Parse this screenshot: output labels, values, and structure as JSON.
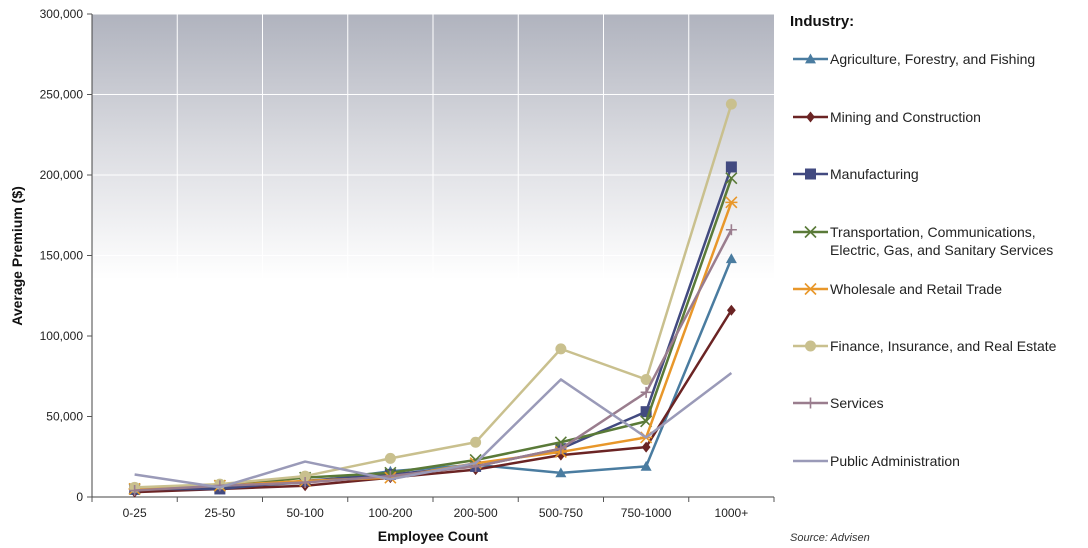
{
  "chart_data": {
    "type": "line",
    "xlabel": "Employee Count",
    "ylabel": "Average Premium ($)",
    "categories": [
      "0-25",
      "25-50",
      "50-100",
      "100-200",
      "200-500",
      "500-750",
      "750-1000",
      "1000+"
    ],
    "ylim": [
      0,
      300000
    ],
    "yticks": [
      0,
      50000,
      100000,
      150000,
      200000,
      250000,
      300000
    ],
    "ytick_labels": [
      "0",
      "50,000",
      "100,000",
      "150,000",
      "200,000",
      "250,000",
      "300,000"
    ],
    "grid": true,
    "legend_title": "Industry:",
    "legend_position": "right",
    "source": "Source: Advisen",
    "series": [
      {
        "name": "Agriculture, Forestry, and Fishing",
        "color": "#4a7ca0",
        "marker": "triangle",
        "values": [
          4000,
          6000,
          9000,
          16000,
          20000,
          15000,
          19000,
          148000
        ]
      },
      {
        "name": "Mining and Construction",
        "color": "#6b2424",
        "marker": "diamond",
        "values": [
          3000,
          5000,
          7000,
          12000,
          17000,
          26000,
          31000,
          116000
        ]
      },
      {
        "name": "Manufacturing",
        "color": "#424a80",
        "marker": "square",
        "values": [
          5000,
          5000,
          10000,
          14000,
          19000,
          30000,
          53000,
          205000
        ]
      },
      {
        "name": "Transportation, Communications, Electric, Gas, and Sanitary Services",
        "color": "#5a7a38",
        "marker": "x",
        "values": [
          5000,
          7000,
          12000,
          15000,
          23000,
          34000,
          47000,
          198000
        ]
      },
      {
        "name": "Wholesale and Retail Trade",
        "color": "#e8972a",
        "marker": "star",
        "values": [
          5000,
          7000,
          10000,
          12000,
          21000,
          28000,
          37000,
          183000
        ]
      },
      {
        "name": "Finance, Insurance, and Real Estate",
        "color": "#c9c08e",
        "marker": "circle",
        "values": [
          6000,
          8000,
          13000,
          24000,
          34000,
          92000,
          73000,
          244000
        ]
      },
      {
        "name": "Services",
        "color": "#9a7d8e",
        "marker": "plus",
        "values": [
          4000,
          7000,
          9000,
          13000,
          19000,
          30000,
          65000,
          166000
        ]
      },
      {
        "name": "Public Administration",
        "color": "#9a9ab8",
        "marker": "none",
        "values": [
          14000,
          6000,
          22000,
          11000,
          21000,
          73000,
          37000,
          77000
        ]
      }
    ]
  }
}
